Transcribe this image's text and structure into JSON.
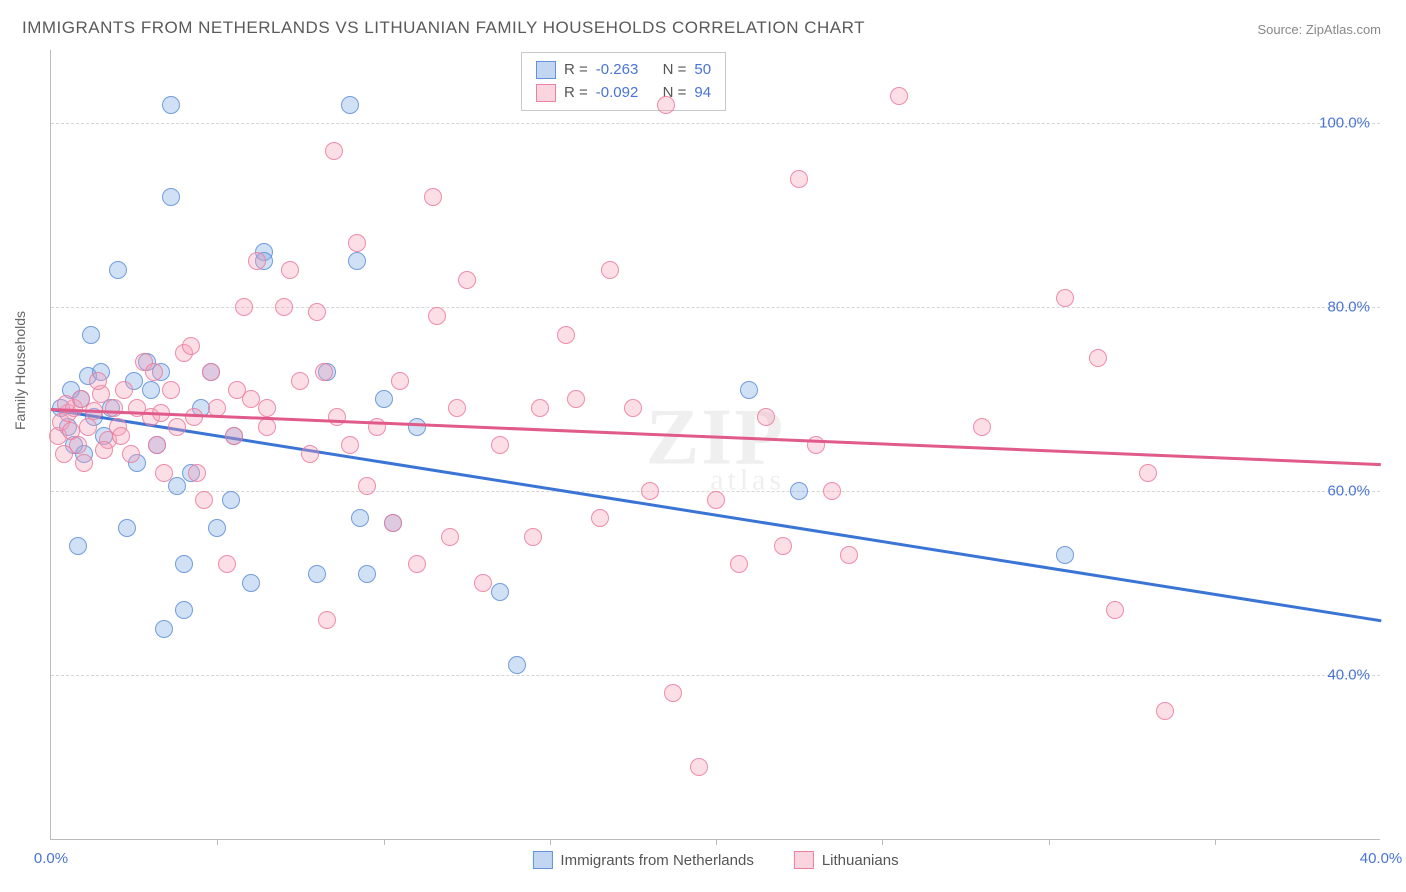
{
  "title": "IMMIGRANTS FROM NETHERLANDS VS LITHUANIAN FAMILY HOUSEHOLDS CORRELATION CHART",
  "source": "Source: ZipAtlas.com",
  "ylabel": "Family Households",
  "watermark_main": "ZIP",
  "watermark_sub": "atlas",
  "chart": {
    "type": "scatter",
    "xlim": [
      0,
      40
    ],
    "ylim": [
      22,
      108
    ],
    "xticks": [
      0,
      5,
      10,
      15,
      20,
      25,
      30,
      35,
      40
    ],
    "xtick_labels": [
      "0.0%",
      "",
      "",
      "",
      "",
      "",
      "",
      "",
      "40.0%"
    ],
    "yticks": [
      40,
      60,
      80,
      100
    ],
    "ytick_labels": [
      "40.0%",
      "60.0%",
      "80.0%",
      "100.0%"
    ],
    "grid_color": "#d5d5d5",
    "axis_color": "#bcbcbc",
    "tick_label_color": "#4a74d4",
    "marker_radius": 9,
    "series": [
      {
        "id": "netherlands",
        "label": "Immigrants from Netherlands",
        "r": "-0.263",
        "n": "50",
        "point_fill": "rgba(120,165,225,0.35)",
        "point_stroke": "rgba(90,140,215,0.8)",
        "line_color": "#3a74d4",
        "trend": {
          "y_at_xmin": 69.0,
          "y_at_xmax": 46.0
        },
        "points": [
          [
            0.3,
            69
          ],
          [
            0.5,
            67
          ],
          [
            0.7,
            65
          ],
          [
            0.9,
            70
          ],
          [
            1.0,
            64
          ],
          [
            1.1,
            72.5
          ],
          [
            1.3,
            68
          ],
          [
            1.5,
            73
          ],
          [
            1.6,
            66
          ],
          [
            2.0,
            84
          ],
          [
            2.5,
            72
          ],
          [
            2.6,
            63
          ],
          [
            2.9,
            74
          ],
          [
            3.2,
            65
          ],
          [
            3.3,
            73
          ],
          [
            3.4,
            45
          ],
          [
            3.6,
            102
          ],
          [
            3.6,
            92
          ],
          [
            3.8,
            60.5
          ],
          [
            4.0,
            52
          ],
          [
            4.0,
            47
          ],
          [
            4.2,
            62
          ],
          [
            4.5,
            69
          ],
          [
            5.0,
            56
          ],
          [
            5.5,
            66
          ],
          [
            6.0,
            50
          ],
          [
            6.4,
            86
          ],
          [
            6.4,
            85
          ],
          [
            8.0,
            51
          ],
          [
            8.3,
            73
          ],
          [
            9.0,
            102
          ],
          [
            9.2,
            85
          ],
          [
            9.3,
            57
          ],
          [
            9.5,
            51
          ],
          [
            10.0,
            70
          ],
          [
            10.3,
            56.5
          ],
          [
            11.0,
            67
          ],
          [
            13.5,
            49
          ],
          [
            14.0,
            41
          ],
          [
            21.0,
            71
          ],
          [
            22.5,
            60
          ],
          [
            30.5,
            53
          ],
          [
            1.2,
            77
          ],
          [
            0.8,
            54
          ],
          [
            2.3,
            56
          ],
          [
            3.0,
            71
          ],
          [
            4.8,
            73
          ],
          [
            5.4,
            59
          ],
          [
            0.6,
            71
          ],
          [
            1.8,
            69
          ]
        ]
      },
      {
        "id": "lithuanians",
        "label": "Lithuanians",
        "r": "-0.092",
        "n": "94",
        "point_fill": "rgba(245,160,185,0.35)",
        "point_stroke": "rgba(235,120,155,0.8)",
        "line_color": "#e05a8a",
        "trend": {
          "y_at_xmin": 69.0,
          "y_at_xmax": 63.0
        },
        "points": [
          [
            0.2,
            66
          ],
          [
            0.3,
            67.5
          ],
          [
            0.4,
            64
          ],
          [
            0.5,
            68.5
          ],
          [
            0.6,
            66.5
          ],
          [
            0.7,
            69
          ],
          [
            0.8,
            65
          ],
          [
            0.9,
            70
          ],
          [
            1.0,
            63
          ],
          [
            1.1,
            67
          ],
          [
            1.3,
            68.7
          ],
          [
            1.5,
            70.5
          ],
          [
            1.7,
            65.5
          ],
          [
            1.9,
            69
          ],
          [
            2.0,
            67
          ],
          [
            2.2,
            71
          ],
          [
            2.4,
            64
          ],
          [
            2.6,
            69
          ],
          [
            2.8,
            74
          ],
          [
            3.0,
            68
          ],
          [
            3.2,
            65
          ],
          [
            3.4,
            62
          ],
          [
            3.6,
            71
          ],
          [
            3.8,
            67
          ],
          [
            4.0,
            75
          ],
          [
            4.2,
            75.8
          ],
          [
            4.4,
            62
          ],
          [
            4.6,
            59
          ],
          [
            4.8,
            73
          ],
          [
            5.0,
            69
          ],
          [
            5.3,
            52
          ],
          [
            5.5,
            66
          ],
          [
            5.8,
            80
          ],
          [
            6.0,
            70
          ],
          [
            6.5,
            69
          ],
          [
            6.5,
            67
          ],
          [
            7.0,
            80
          ],
          [
            7.2,
            84
          ],
          [
            7.5,
            72
          ],
          [
            8.0,
            79.5
          ],
          [
            8.2,
            73
          ],
          [
            8.3,
            46
          ],
          [
            8.5,
            97
          ],
          [
            8.6,
            68
          ],
          [
            9.0,
            65
          ],
          [
            9.2,
            87
          ],
          [
            9.5,
            60.5
          ],
          [
            9.8,
            67
          ],
          [
            10.3,
            56.5
          ],
          [
            10.5,
            72
          ],
          [
            11.0,
            52
          ],
          [
            11.5,
            92
          ],
          [
            11.6,
            79
          ],
          [
            12.0,
            55
          ],
          [
            12.2,
            69
          ],
          [
            12.5,
            83
          ],
          [
            13.0,
            50
          ],
          [
            13.5,
            65
          ],
          [
            14.5,
            55
          ],
          [
            14.7,
            69
          ],
          [
            15.5,
            77
          ],
          [
            15.8,
            70
          ],
          [
            16.5,
            57
          ],
          [
            16.8,
            84
          ],
          [
            17.5,
            69
          ],
          [
            18.0,
            60
          ],
          [
            18.5,
            102
          ],
          [
            18.7,
            38
          ],
          [
            19.5,
            30
          ],
          [
            20.0,
            59
          ],
          [
            20.7,
            52
          ],
          [
            21.5,
            68
          ],
          [
            22.0,
            54
          ],
          [
            22.5,
            94
          ],
          [
            23.0,
            65
          ],
          [
            23.5,
            60
          ],
          [
            24.0,
            53
          ],
          [
            25.5,
            103
          ],
          [
            28.0,
            67
          ],
          [
            30.5,
            81
          ],
          [
            31.5,
            74.5
          ],
          [
            32.0,
            47
          ],
          [
            33.0,
            62
          ],
          [
            33.5,
            36
          ],
          [
            6.2,
            85
          ],
          [
            7.8,
            64
          ],
          [
            4.3,
            68
          ],
          [
            3.1,
            73
          ],
          [
            5.6,
            71
          ],
          [
            1.4,
            72
          ],
          [
            2.1,
            66
          ],
          [
            0.45,
            69.5
          ],
          [
            1.6,
            64.5
          ],
          [
            3.3,
            68.5
          ]
        ]
      }
    ]
  },
  "legend_top_labels": {
    "r_prefix": "R = ",
    "n_prefix": "N = "
  }
}
